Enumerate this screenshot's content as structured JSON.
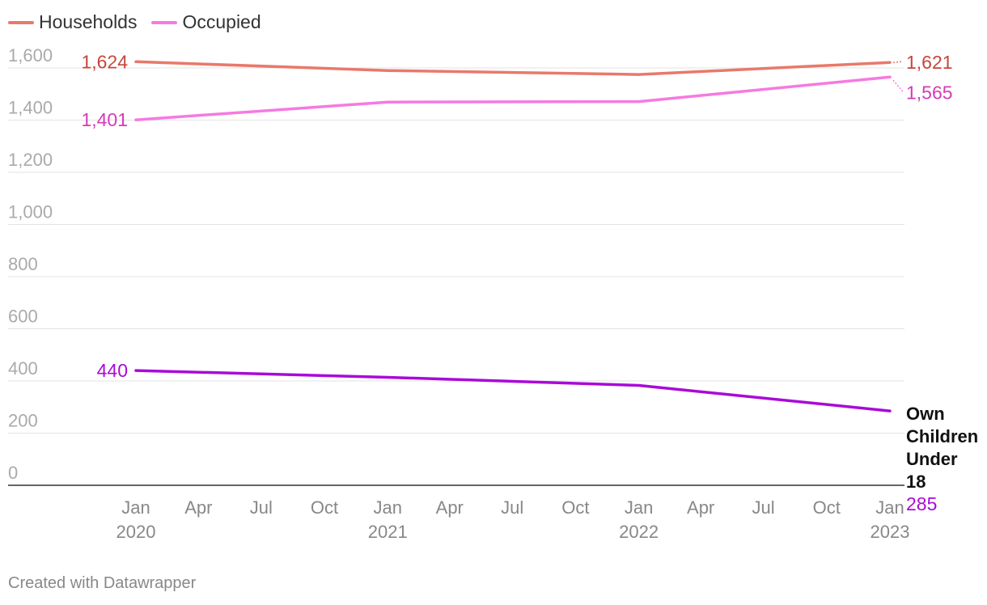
{
  "legend": [
    {
      "label": "Households",
      "color": "#e8796b"
    },
    {
      "label": "Occupied",
      "color": "#f57ae0"
    }
  ],
  "footer": {
    "credit": "Created with Datawrapper"
  },
  "chart_data": {
    "type": "line",
    "title": "",
    "xlabel": "",
    "ylabel": "",
    "ylim": [
      0,
      1600
    ],
    "y_ticks": [
      0,
      200,
      400,
      600,
      800,
      1000,
      1200,
      1400,
      1600
    ],
    "y_tick_labels": [
      "0",
      "200",
      "400",
      "600",
      "800",
      "1,000",
      "1,200",
      "1,400",
      "1,600"
    ],
    "x_ticks": [
      {
        "month": "Jan",
        "year": "2020",
        "date": "2020-01"
      },
      {
        "month": "Apr",
        "year": "",
        "date": "2020-04"
      },
      {
        "month": "Jul",
        "year": "",
        "date": "2020-07"
      },
      {
        "month": "Oct",
        "year": "",
        "date": "2020-10"
      },
      {
        "month": "Jan",
        "year": "2021",
        "date": "2021-01"
      },
      {
        "month": "Apr",
        "year": "",
        "date": "2021-04"
      },
      {
        "month": "Jul",
        "year": "",
        "date": "2021-07"
      },
      {
        "month": "Oct",
        "year": "",
        "date": "2021-10"
      },
      {
        "month": "Jan",
        "year": "2022",
        "date": "2022-01"
      },
      {
        "month": "Apr",
        "year": "",
        "date": "2022-04"
      },
      {
        "month": "Jul",
        "year": "",
        "date": "2022-07"
      },
      {
        "month": "Oct",
        "year": "",
        "date": "2022-10"
      },
      {
        "month": "Jan",
        "year": "2023",
        "date": "2023-01"
      }
    ],
    "grid": true,
    "legend_position": "top-left",
    "series": [
      {
        "name": "Households",
        "color": "#e8796b",
        "label_color": "#c5473a",
        "x": [
          "2020-01",
          "2021-01",
          "2022-01",
          "2023-01"
        ],
        "values": [
          1624,
          1590,
          1575,
          1621
        ],
        "start_label": "1,624",
        "end_label": "1,621"
      },
      {
        "name": "Occupied",
        "color": "#f57ae0",
        "label_color": "#d63ab8",
        "x": [
          "2020-01",
          "2021-01",
          "2022-01",
          "2023-01"
        ],
        "values": [
          1401,
          1469,
          1471,
          1565
        ],
        "start_label": "1,401",
        "end_label": "1,565"
      },
      {
        "name": "Own Children Under 18",
        "color": "#a90ad8",
        "label_color": "#a90ad8",
        "x": [
          "2020-01",
          "2021-01",
          "2022-01",
          "2023-01"
        ],
        "values": [
          440,
          414,
          383,
          285
        ],
        "start_label": "440",
        "end_label": "285"
      }
    ]
  }
}
